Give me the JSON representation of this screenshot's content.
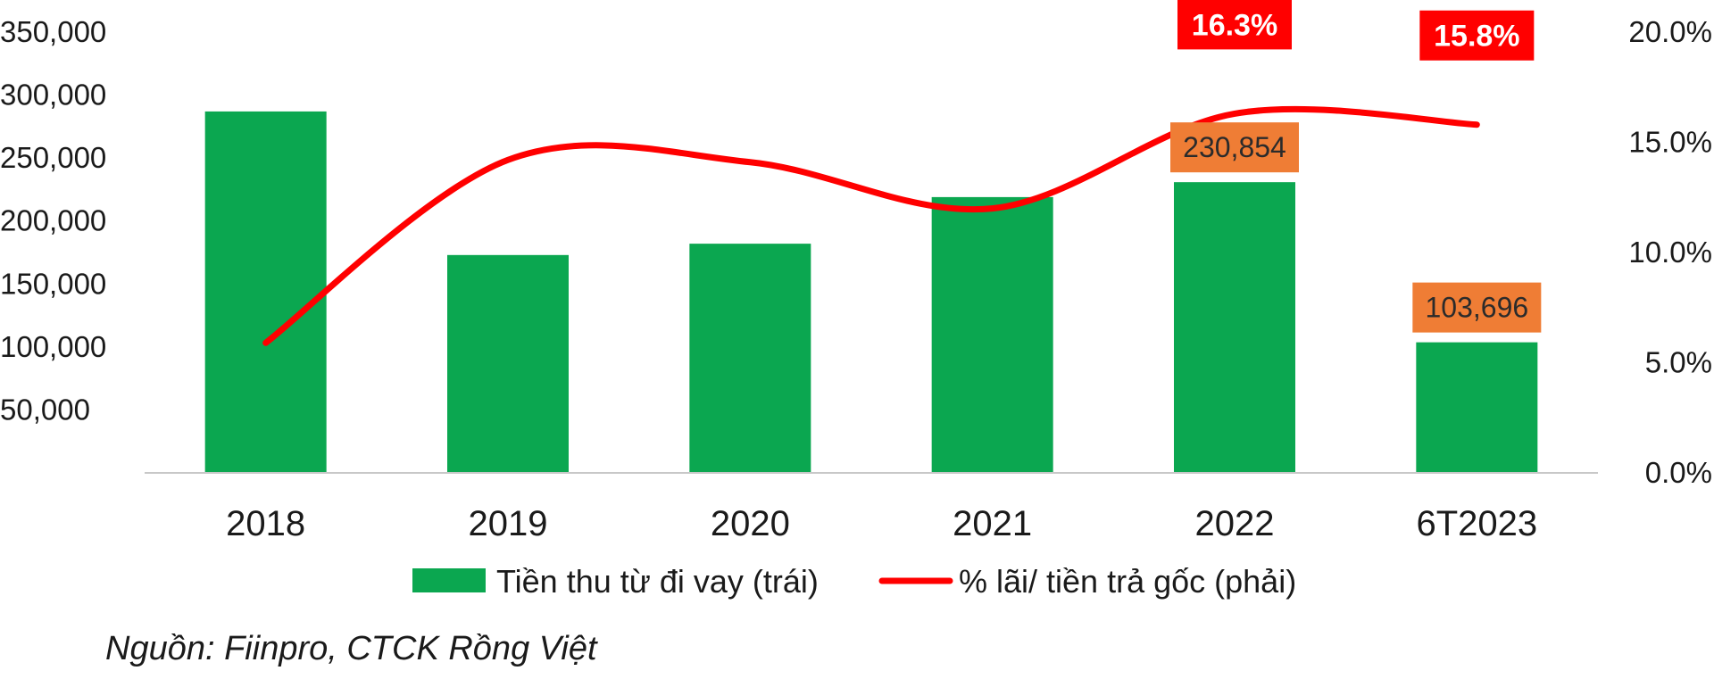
{
  "chart_data": {
    "type": "bar",
    "categories": [
      "2018",
      "2019",
      "2020",
      "2021",
      "2022",
      "6T2023"
    ],
    "series": [
      {
        "name": "Tiền thu từ đi vay (trái)",
        "type": "bar",
        "axis": "left",
        "values": [
          287000,
          173000,
          182000,
          219000,
          230854,
          103696
        ]
      },
      {
        "name": "% lãi/ tiền trả gốc (phải)",
        "type": "line",
        "axis": "right",
        "values": [
          5.9,
          14.2,
          14.1,
          12.0,
          16.3,
          15.8
        ]
      }
    ],
    "y_left": {
      "min": 0,
      "max": 350000,
      "ticks": [
        "50,000",
        "100,000",
        "150,000",
        "200,000",
        "250,000",
        "300,000",
        "350,000"
      ],
      "tick_values": [
        50000,
        100000,
        150000,
        200000,
        250000,
        300000,
        350000
      ]
    },
    "y_right": {
      "min": 0,
      "max": 20,
      "ticks": [
        "0.0%",
        "5.0%",
        "10.0%",
        "15.0%",
        "20.0%"
      ],
      "tick_values": [
        0,
        5,
        10,
        15,
        20
      ]
    },
    "bar_labels": [
      {
        "index": 4,
        "text": "230,854"
      },
      {
        "index": 5,
        "text": "103,696"
      }
    ],
    "line_labels": [
      {
        "index": 4,
        "text": "16.3%"
      },
      {
        "index": 5,
        "text": "15.8%"
      }
    ],
    "colors": {
      "bar": "#0ba750",
      "line": "#ff0000",
      "bar_label_bg": "#ef7d35",
      "line_label_bg": "#ff0000",
      "axis": "#c8c8c8"
    },
    "legend_position": "bottom",
    "grid": false
  },
  "source": "Nguồn: Fiinpro, CTCK Rồng Việt"
}
